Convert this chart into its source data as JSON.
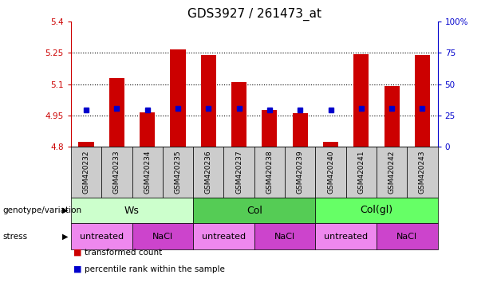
{
  "title": "GDS3927 / 261473_at",
  "samples": [
    "GSM420232",
    "GSM420233",
    "GSM420234",
    "GSM420235",
    "GSM420236",
    "GSM420237",
    "GSM420238",
    "GSM420239",
    "GSM420240",
    "GSM420241",
    "GSM420242",
    "GSM420243"
  ],
  "bar_values": [
    4.825,
    5.13,
    4.965,
    5.265,
    5.24,
    5.11,
    4.975,
    4.96,
    4.825,
    5.245,
    5.09,
    5.24
  ],
  "bar_base": 4.8,
  "percentile_values": [
    4.975,
    4.985,
    4.975,
    4.985,
    4.985,
    4.985,
    4.975,
    4.975,
    4.975,
    4.985,
    4.985,
    4.985
  ],
  "ylim": [
    4.8,
    5.4
  ],
  "yticks": [
    4.8,
    4.95,
    5.1,
    5.25,
    5.4
  ],
  "ytick_labels": [
    "4.8",
    "4.95",
    "5.1",
    "5.25",
    "5.4"
  ],
  "right_yticks": [
    0,
    25,
    50,
    75,
    100
  ],
  "right_ytick_labels": [
    "0",
    "25",
    "50",
    "75",
    "100%"
  ],
  "bar_color": "#cc0000",
  "percentile_color": "#0000cc",
  "genotype_groups": [
    {
      "label": "Ws",
      "start": 0,
      "end": 4,
      "color": "#ccffcc"
    },
    {
      "label": "Col",
      "start": 4,
      "end": 8,
      "color": "#55cc55"
    },
    {
      "label": "Col(gl)",
      "start": 8,
      "end": 12,
      "color": "#66ff66"
    }
  ],
  "stress_groups": [
    {
      "label": "untreated",
      "start": 0,
      "end": 2,
      "color": "#ee88ee"
    },
    {
      "label": "NaCl",
      "start": 2,
      "end": 4,
      "color": "#cc44cc"
    },
    {
      "label": "untreated",
      "start": 4,
      "end": 6,
      "color": "#ee88ee"
    },
    {
      "label": "NaCl",
      "start": 6,
      "end": 8,
      "color": "#cc44cc"
    },
    {
      "label": "untreated",
      "start": 8,
      "end": 10,
      "color": "#ee88ee"
    },
    {
      "label": "NaCl",
      "start": 10,
      "end": 12,
      "color": "#cc44cc"
    }
  ],
  "left_axis_color": "#cc0000",
  "right_axis_color": "#0000cc",
  "legend_items": [
    {
      "label": "transformed count",
      "color": "#cc0000"
    },
    {
      "label": "percentile rank within the sample",
      "color": "#0000cc"
    }
  ],
  "genotype_label": "genotype/variation",
  "stress_label": "stress",
  "title_fontsize": 11,
  "tick_fontsize": 7.5,
  "label_fontsize": 8,
  "sample_bg_color": "#cccccc"
}
